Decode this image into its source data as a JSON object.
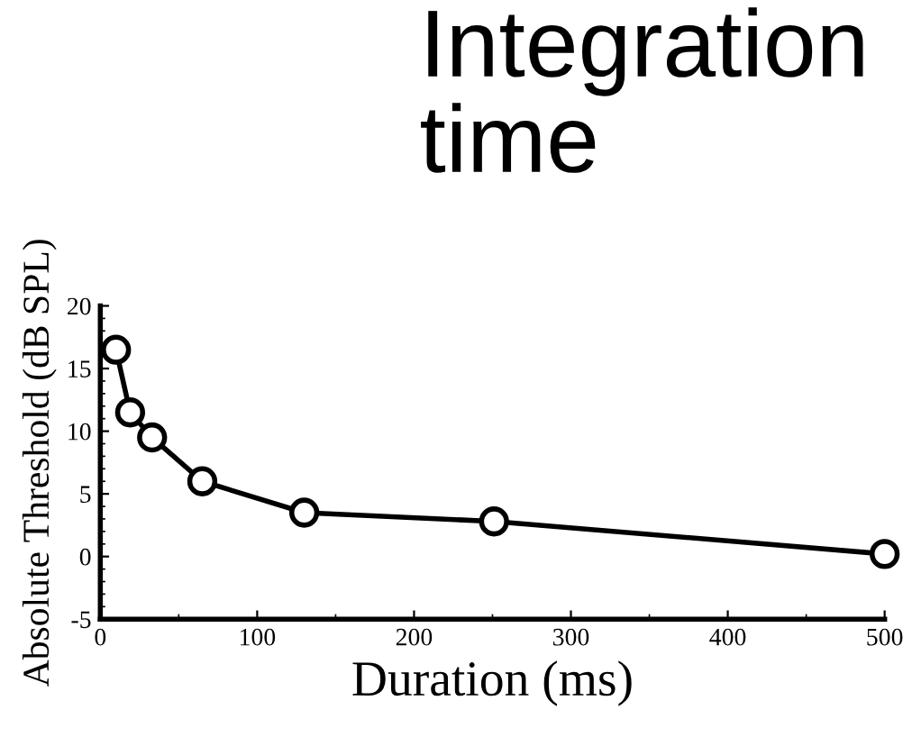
{
  "chart_data": {
    "type": "line",
    "title": "Integration time",
    "xlabel": "Duration (ms)",
    "ylabel": "Absolute Threshold (dB SPL)",
    "x": [
      10,
      19,
      33,
      65,
      130,
      251,
      500
    ],
    "series": [
      {
        "color": "#000000",
        "values": [
          16.5,
          11.5,
          9.5,
          6,
          3.5,
          2.8,
          0.2
        ]
      }
    ],
    "xlim": [
      0,
      500
    ],
    "ylim": [
      -5,
      20
    ],
    "xticks": [
      0,
      100,
      200,
      300,
      400,
      500
    ],
    "yticks": [
      -5,
      0,
      5,
      10,
      15,
      20
    ],
    "marker": "circle",
    "line_style": "solid",
    "grid": false,
    "legend": false
  }
}
